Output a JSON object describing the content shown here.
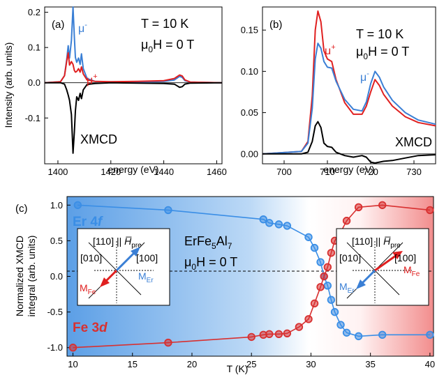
{
  "chart_data": [
    {
      "type": "line",
      "panel_label": "(a)",
      "xlabel": "energy (eV)",
      "ylabel": "Intensity (arb. units)",
      "xlim": [
        1395,
        1462
      ],
      "ylim": [
        -0.23,
        0.215
      ],
      "xticks": [
        1400,
        1420,
        1440,
        1460
      ],
      "yticks": [
        -0.1,
        0.0,
        0.1,
        0.2
      ],
      "ytick_labels": [
        "-0.1",
        "0.0",
        "0.1",
        "0.2"
      ],
      "annotation_lines": [
        "T = 10 K",
        "μ0H = 0 T"
      ],
      "series": [
        {
          "name": "μ-",
          "color": "#3a7fd5",
          "x": [
            1395,
            1401,
            1402.5,
            1403.3,
            1403.9,
            1404.4,
            1405.1,
            1405.7,
            1406.2,
            1406.6,
            1407.1,
            1407.8,
            1408.4,
            1408.9,
            1409.6,
            1411,
            1414,
            1420,
            1430,
            1440,
            1444,
            1446,
            1447,
            1448,
            1450,
            1462
          ],
          "y": [
            0.0,
            0.003,
            0.02,
            0.065,
            0.105,
            0.07,
            0.12,
            0.215,
            0.13,
            0.072,
            0.058,
            0.07,
            0.052,
            0.082,
            0.04,
            0.012,
            0.004,
            0.002,
            0.002,
            0.004,
            0.008,
            0.018,
            0.015,
            0.006,
            0.002,
            0.0
          ]
        },
        {
          "name": "μ+",
          "color": "#e02020",
          "x": [
            1395,
            1401,
            1402.5,
            1403.3,
            1403.9,
            1404.4,
            1405.1,
            1405.7,
            1406.2,
            1406.6,
            1407.1,
            1407.8,
            1408.4,
            1408.9,
            1409.6,
            1411,
            1414,
            1420,
            1430,
            1440,
            1444,
            1446,
            1447,
            1448,
            1450,
            1462
          ],
          "y": [
            0.0,
            0.003,
            0.02,
            0.06,
            0.085,
            0.05,
            0.06,
            0.052,
            0.035,
            0.03,
            0.032,
            0.04,
            0.03,
            0.045,
            0.025,
            0.008,
            0.004,
            0.003,
            0.004,
            0.006,
            0.012,
            0.022,
            0.019,
            0.008,
            0.002,
            0.0
          ]
        },
        {
          "name": "XMCD",
          "color": "#000000",
          "x": [
            1395,
            1401,
            1402.5,
            1403.3,
            1403.9,
            1404.4,
            1405.1,
            1405.7,
            1406.2,
            1406.6,
            1407.1,
            1407.8,
            1408.4,
            1408.9,
            1409.6,
            1411,
            1414,
            1420,
            1430,
            1440,
            1444,
            1446,
            1447,
            1448,
            1450,
            1462
          ],
          "y": [
            0.0,
            0.0,
            -0.004,
            -0.02,
            -0.035,
            -0.05,
            -0.09,
            -0.2,
            -0.14,
            -0.08,
            -0.04,
            -0.05,
            -0.03,
            -0.045,
            -0.02,
            -0.005,
            -0.002,
            0.0,
            -0.001,
            -0.002,
            -0.004,
            -0.013,
            -0.011,
            -0.004,
            -0.001,
            0.0
          ]
        }
      ]
    },
    {
      "type": "line",
      "panel_label": "(b)",
      "xlabel": "energy (eV)",
      "ylabel": "",
      "xlim": [
        695,
        735
      ],
      "ylim": [
        -0.012,
        0.178
      ],
      "xticks": [
        700,
        710,
        720,
        730
      ],
      "yticks": [
        0.0,
        0.05,
        0.1,
        0.15
      ],
      "ytick_labels": [
        "0.00",
        "0.05",
        "0.10",
        "0.15"
      ],
      "annotation_lines": [
        "T = 10 K",
        "μ0H = 0 T"
      ],
      "series": [
        {
          "name": "μ+",
          "color": "#e02020",
          "x": [
            695,
            704,
            705.5,
            706.5,
            707.2,
            707.8,
            708.5,
            709.2,
            710,
            711,
            712,
            714,
            716,
            718,
            719,
            720,
            721,
            722,
            723,
            725,
            728,
            731,
            735
          ],
          "y": [
            0.0,
            0.003,
            0.015,
            0.07,
            0.15,
            0.173,
            0.16,
            0.125,
            0.115,
            0.112,
            0.09,
            0.062,
            0.048,
            0.048,
            0.058,
            0.075,
            0.09,
            0.083,
            0.072,
            0.058,
            0.045,
            0.038,
            0.034
          ]
        },
        {
          "name": "μ-",
          "color": "#3a7fd5",
          "x": [
            695,
            704,
            705.5,
            706.5,
            707.2,
            707.8,
            708.5,
            709.2,
            710,
            711,
            712,
            714,
            716,
            718,
            719,
            720,
            721,
            722,
            723,
            725,
            728,
            731,
            735
          ],
          "y": [
            0.0,
            0.003,
            0.013,
            0.055,
            0.115,
            0.134,
            0.128,
            0.112,
            0.105,
            0.104,
            0.088,
            0.066,
            0.054,
            0.052,
            0.063,
            0.085,
            0.1,
            0.093,
            0.081,
            0.065,
            0.05,
            0.041,
            0.036
          ]
        },
        {
          "name": "XMCD",
          "color": "#000000",
          "x": [
            695,
            704,
            705.5,
            706.5,
            707.2,
            707.8,
            708.5,
            709.2,
            710,
            711,
            712,
            714,
            716,
            718,
            719,
            720,
            721,
            722,
            723,
            725,
            728,
            731,
            735
          ],
          "y": [
            0.0,
            0.0,
            0.002,
            0.015,
            0.034,
            0.039,
            0.032,
            0.013,
            0.009,
            0.008,
            0.002,
            -0.002,
            -0.004,
            -0.002,
            -0.004,
            -0.01,
            -0.011,
            -0.01,
            -0.009,
            -0.008,
            -0.005,
            -0.002,
            -0.001
          ]
        }
      ]
    },
    {
      "type": "line",
      "panel_label": "(c)",
      "xlabel": "T (K)",
      "ylabel": "Normalized XMCD integral (arb. units)",
      "ylabel_lines": [
        "Normalized XMCD",
        "integral (arb. units)"
      ],
      "xlim": [
        9.5,
        40.3
      ],
      "ylim": [
        -1.12,
        1.12
      ],
      "xticks": [
        10,
        15,
        20,
        25,
        30,
        35,
        40
      ],
      "yticks": [
        -1.0,
        -0.5,
        0.0,
        0.5,
        1.0
      ],
      "ytick_labels": [
        "-1.0",
        "-0.5",
        "0.0",
        "0.5",
        "1.0"
      ],
      "annotation_lines": [
        "ErFe5Al7",
        "μ0H = 0 T"
      ],
      "series": [
        {
          "name": "Er 4f",
          "color": "#3a8ee6",
          "x": [
            10.4,
            18,
            26,
            26.5,
            27.3,
            28,
            29.8,
            30.3,
            30.8,
            31.1,
            31.4,
            31.7,
            32,
            32.5,
            33,
            34,
            36,
            40
          ],
          "y": [
            1.0,
            0.93,
            0.8,
            0.75,
            0.73,
            0.71,
            0.55,
            0.4,
            0.2,
            0.0,
            -0.13,
            -0.33,
            -0.5,
            -0.68,
            -0.79,
            -0.84,
            -0.82,
            -0.82
          ]
        },
        {
          "name": "Fe 3d",
          "color": "#d83030",
          "x": [
            10,
            18,
            25,
            26,
            26.5,
            27.3,
            28,
            29,
            29.8,
            30.3,
            30.8,
            31.1,
            31.4,
            31.7,
            32,
            32.5,
            33,
            34,
            36,
            40
          ],
          "y": [
            -1.0,
            -0.93,
            -0.85,
            -0.82,
            -0.81,
            -0.81,
            -0.8,
            -0.71,
            -0.6,
            -0.38,
            -0.15,
            0.0,
            0.13,
            0.33,
            0.5,
            0.62,
            0.78,
            0.97,
            1.0,
            0.93
          ]
        }
      ]
    }
  ]
}
